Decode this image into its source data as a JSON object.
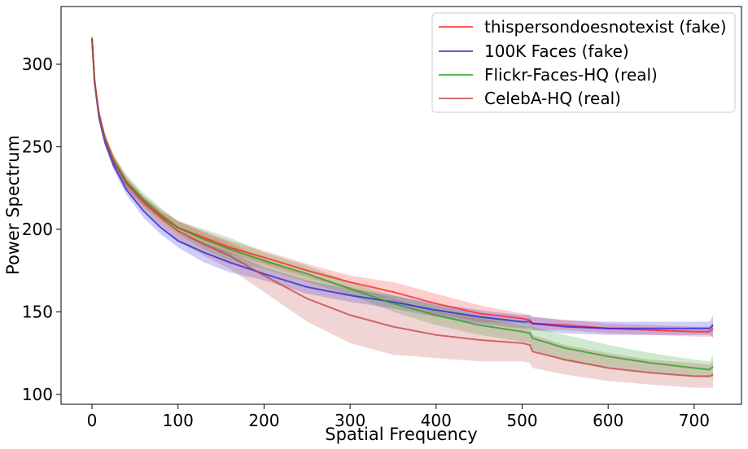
{
  "chart_data": {
    "type": "line",
    "title": "",
    "xlabel": "Spatial Frequency",
    "ylabel": "Power Spectrum",
    "xlim": [
      -36,
      755
    ],
    "ylim": [
      94,
      335
    ],
    "xticks": [
      0,
      100,
      200,
      300,
      400,
      500,
      600,
      700
    ],
    "yticks": [
      100,
      150,
      200,
      250,
      300
    ],
    "grid": false,
    "legend_position": "top-right",
    "series": [
      {
        "name": "thispersondoesnotexist (fake)",
        "color": "#ff2020",
        "x": [
          0,
          3,
          8,
          15,
          25,
          40,
          60,
          80,
          100,
          130,
          160,
          200,
          250,
          300,
          350,
          400,
          450,
          500,
          509,
          512,
          550,
          600,
          650,
          700,
          718,
          722
        ],
        "y": [
          316,
          290,
          270,
          255,
          242,
          228,
          217,
          208,
          201,
          195,
          189,
          183,
          175,
          168,
          162,
          155,
          149,
          146,
          145,
          143,
          142,
          140,
          139,
          138,
          138,
          140
        ],
        "upper": [
          319,
          293,
          273,
          258,
          245,
          231,
          220,
          211,
          205,
          199,
          193,
          187,
          179,
          172,
          168,
          161,
          154,
          149,
          148,
          147,
          145,
          143,
          142,
          141,
          141,
          144
        ],
        "lower": [
          313,
          287,
          267,
          252,
          239,
          225,
          214,
          205,
          197,
          191,
          185,
          179,
          171,
          164,
          157,
          149,
          144,
          143,
          142,
          139,
          139,
          137,
          136,
          135,
          135,
          135
        ]
      },
      {
        "name": "100K Faces (fake)",
        "color": "#2020e0",
        "x": [
          0,
          3,
          8,
          15,
          25,
          40,
          60,
          80,
          100,
          130,
          160,
          200,
          250,
          300,
          350,
          400,
          450,
          500,
          509,
          512,
          550,
          600,
          650,
          700,
          718,
          722
        ],
        "y": [
          316,
          289,
          268,
          253,
          239,
          224,
          211,
          201,
          193,
          186,
          180,
          173,
          165,
          160,
          156,
          151,
          147,
          144,
          144,
          143,
          141,
          140,
          140,
          140,
          140,
          142
        ],
        "upper": [
          319,
          292,
          271,
          256,
          242,
          227,
          215,
          205,
          197,
          192,
          186,
          177,
          169,
          164,
          160,
          155,
          151,
          148,
          148,
          147,
          145,
          144,
          144,
          144,
          144,
          148
        ],
        "lower": [
          313,
          286,
          265,
          250,
          236,
          221,
          207,
          197,
          189,
          180,
          174,
          169,
          161,
          156,
          152,
          147,
          143,
          140,
          140,
          139,
          137,
          136,
          136,
          136,
          136,
          134
        ]
      },
      {
        "name": "Flickr-Faces-HQ (real)",
        "color": "#20a020",
        "x": [
          0,
          3,
          8,
          15,
          25,
          40,
          60,
          80,
          100,
          130,
          160,
          200,
          250,
          300,
          350,
          400,
          450,
          500,
          509,
          512,
          550,
          600,
          650,
          700,
          718,
          722
        ],
        "y": [
          316,
          290,
          270,
          255,
          242,
          229,
          218,
          209,
          201,
          194,
          188,
          181,
          173,
          164,
          155,
          148,
          142,
          138,
          137,
          134,
          128,
          123,
          119,
          116,
          115,
          117
        ],
        "upper": [
          319,
          293,
          273,
          258,
          245,
          233,
          222,
          213,
          205,
          200,
          195,
          186,
          178,
          168,
          160,
          154,
          148,
          144,
          143,
          141,
          136,
          130,
          125,
          121,
          120,
          124
        ],
        "lower": [
          313,
          287,
          267,
          252,
          239,
          225,
          214,
          205,
          197,
          188,
          181,
          176,
          168,
          160,
          150,
          142,
          136,
          132,
          131,
          127,
          120,
          116,
          113,
          111,
          110,
          110
        ]
      },
      {
        "name": "CelebA-HQ (real)",
        "color": "#c04040",
        "x": [
          0,
          3,
          8,
          15,
          25,
          40,
          60,
          80,
          100,
          130,
          160,
          200,
          250,
          300,
          350,
          400,
          450,
          500,
          509,
          512,
          550,
          600,
          650,
          700,
          718,
          722
        ],
        "y": [
          316,
          290,
          270,
          255,
          241,
          228,
          216,
          207,
          199,
          191,
          184,
          172,
          158,
          148,
          141,
          136,
          133,
          131,
          130,
          126,
          121,
          116,
          113,
          111,
          111,
          112
        ],
        "upper": [
          319,
          293,
          273,
          258,
          245,
          232,
          220,
          212,
          205,
          198,
          192,
          182,
          172,
          165,
          158,
          150,
          146,
          142,
          141,
          136,
          130,
          125,
          121,
          119,
          118,
          120
        ],
        "lower": [
          313,
          287,
          267,
          252,
          237,
          224,
          212,
          202,
          193,
          184,
          176,
          162,
          144,
          131,
          124,
          122,
          120,
          120,
          119,
          116,
          112,
          108,
          106,
          104,
          104,
          104
        ]
      }
    ]
  }
}
